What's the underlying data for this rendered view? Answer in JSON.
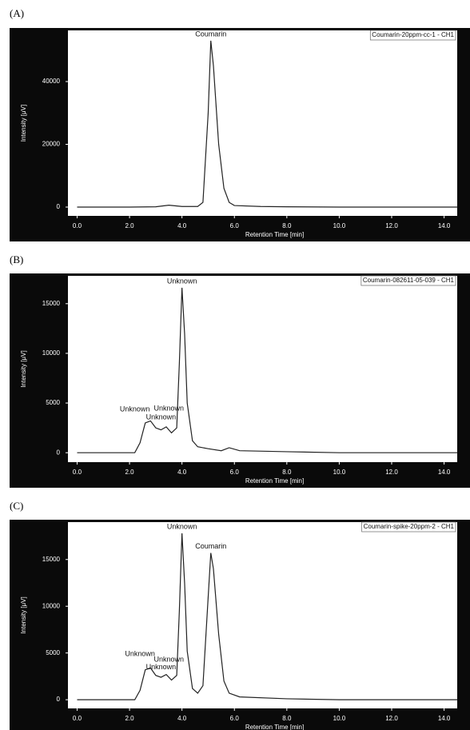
{
  "chart_data": [
    {
      "type": "line",
      "panel": "(A)",
      "xlabel": "Retention Time [min]",
      "ylabel": "Intensity [μV]",
      "xlim": [
        -0.35,
        14.5
      ],
      "ylim": [
        -2800,
        56300
      ],
      "xticks": [
        {
          "value": 0,
          "label": "0.0"
        },
        {
          "value": 2,
          "label": "2.0"
        },
        {
          "value": 4,
          "label": "4.0"
        },
        {
          "value": 6,
          "label": "6.0"
        },
        {
          "value": 8,
          "label": "8.0"
        },
        {
          "value": 10,
          "label": "10.0"
        },
        {
          "value": 12,
          "label": "12.0"
        },
        {
          "value": 14,
          "label": "14.0"
        }
      ],
      "yticks": [
        0,
        20000,
        40000
      ],
      "x": [
        0,
        1,
        2,
        3,
        3.5,
        4,
        4.6,
        4.8,
        5.0,
        5.1,
        5.2,
        5.4,
        5.6,
        5.8,
        6,
        7,
        8,
        10,
        12,
        14.5
      ],
      "series": [
        {
          "name": "Coumarin-20ppm-cc-1 - CH1",
          "color": "#222222",
          "values": [
            0,
            0,
            0,
            100,
            600,
            200,
            200,
            1500,
            30000,
            53000,
            45000,
            20000,
            6000,
            1500,
            500,
            200,
            100,
            0,
            0,
            0
          ]
        }
      ],
      "peak_labels": [
        {
          "label": "Coumarin",
          "x": 5.1,
          "y": 53000
        }
      ]
    },
    {
      "type": "line",
      "panel": "(B)",
      "xlabel": "Retention Time [min]",
      "ylabel": "Intensity [μV]",
      "xlim": [
        -0.35,
        14.5
      ],
      "ylim": [
        -950,
        17800
      ],
      "xticks": [
        {
          "value": 0,
          "label": "0.0"
        },
        {
          "value": 2,
          "label": "2.0"
        },
        {
          "value": 4,
          "label": "4.0"
        },
        {
          "value": 6,
          "label": "6.0"
        },
        {
          "value": 8,
          "label": "8.0"
        },
        {
          "value": 10,
          "label": "10.0"
        },
        {
          "value": 12,
          "label": "12.0"
        },
        {
          "value": 14,
          "label": "14.0"
        }
      ],
      "yticks": [
        0,
        5000,
        10000,
        15000
      ],
      "x": [
        0,
        2.2,
        2.4,
        2.6,
        2.8,
        3.0,
        3.2,
        3.4,
        3.6,
        3.8,
        3.9,
        4.0,
        4.1,
        4.2,
        4.4,
        4.6,
        5,
        5.5,
        5.8,
        6.2,
        8,
        10,
        14.5
      ],
      "series": [
        {
          "name": "Coumarin-082611-05-039 - CH1",
          "color": "#222222",
          "values": [
            0,
            0,
            1000,
            3000,
            3200,
            2500,
            2300,
            2600,
            2000,
            2500,
            9000,
            16600,
            12000,
            5000,
            1200,
            600,
            400,
            200,
            500,
            200,
            100,
            0,
            0
          ]
        }
      ],
      "peak_labels": [
        {
          "label": "Unknown",
          "x": 4.0,
          "y": 16600
        },
        {
          "label": "Unknown",
          "x": 2.2,
          "y": 3700
        },
        {
          "label": "Unknown",
          "x": 3.5,
          "y": 3800
        },
        {
          "label": "Unknown",
          "x": 3.2,
          "y": 2900
        }
      ]
    },
    {
      "type": "line",
      "panel": "(C)",
      "xlabel": "Retention Time [min]",
      "ylabel": "Intensity [μV]",
      "xlim": [
        -0.35,
        14.5
      ],
      "ylim": [
        -930,
        19000
      ],
      "xticks": [
        {
          "value": 0,
          "label": "0.0"
        },
        {
          "value": 2,
          "label": "2.0"
        },
        {
          "value": 4,
          "label": "4.0"
        },
        {
          "value": 6,
          "label": "6.0"
        },
        {
          "value": 8,
          "label": "8.0"
        },
        {
          "value": 10,
          "label": "10.0"
        },
        {
          "value": 12,
          "label": "12.0"
        },
        {
          "value": 14,
          "label": "14.0"
        }
      ],
      "yticks": [
        0,
        5000,
        10000,
        15000
      ],
      "x": [
        0,
        2.2,
        2.4,
        2.6,
        2.8,
        3.0,
        3.2,
        3.4,
        3.6,
        3.8,
        3.9,
        4.0,
        4.1,
        4.2,
        4.4,
        4.6,
        4.8,
        5.0,
        5.1,
        5.2,
        5.4,
        5.6,
        5.8,
        6.2,
        8,
        10,
        14.5
      ],
      "series": [
        {
          "name": "Coumarin-spike-20ppm-2 - CH1",
          "color": "#222222",
          "values": [
            0,
            0,
            1000,
            3200,
            3400,
            2600,
            2400,
            2700,
            2100,
            2600,
            9500,
            17800,
            12500,
            5200,
            1200,
            700,
            1500,
            11000,
            15700,
            14000,
            7000,
            2000,
            700,
            300,
            100,
            0,
            0
          ]
        }
      ],
      "peak_labels": [
        {
          "label": "Unknown",
          "x": 4.0,
          "y": 17800
        },
        {
          "label": "Coumarin",
          "x": 5.1,
          "y": 15700
        },
        {
          "label": "Unknown",
          "x": 2.4,
          "y": 4200
        },
        {
          "label": "Unknown",
          "x": 3.5,
          "y": 3600
        },
        {
          "label": "Unknown",
          "x": 3.2,
          "y": 2800
        }
      ]
    }
  ]
}
